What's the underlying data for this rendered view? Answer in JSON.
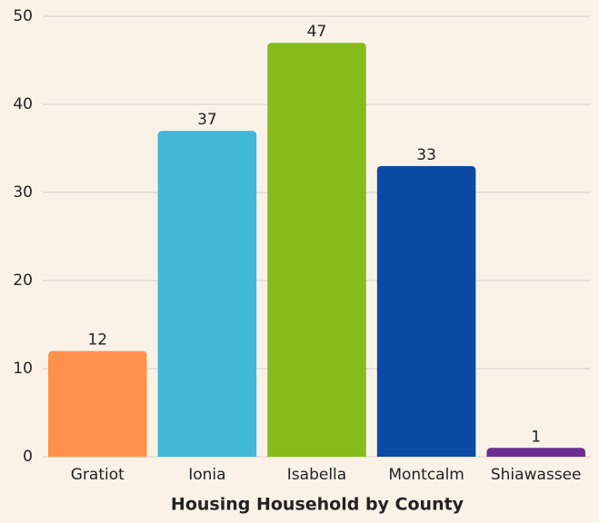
{
  "chart_data": {
    "type": "bar",
    "x_label": "Housing Household by County",
    "categories": [
      "Gratiot",
      "Ionia",
      "Isabella",
      "Montcalm",
      "Shiawassee"
    ],
    "values": [
      12,
      37,
      47,
      33,
      1
    ],
    "colors": [
      "#ff914d",
      "#41b8d8",
      "#86bc1a",
      "#0b4aa2",
      "#6a2c91"
    ],
    "ylim": [
      0,
      50
    ],
    "yticks": [
      0,
      10,
      20,
      30,
      40,
      50
    ],
    "grid": true
  }
}
